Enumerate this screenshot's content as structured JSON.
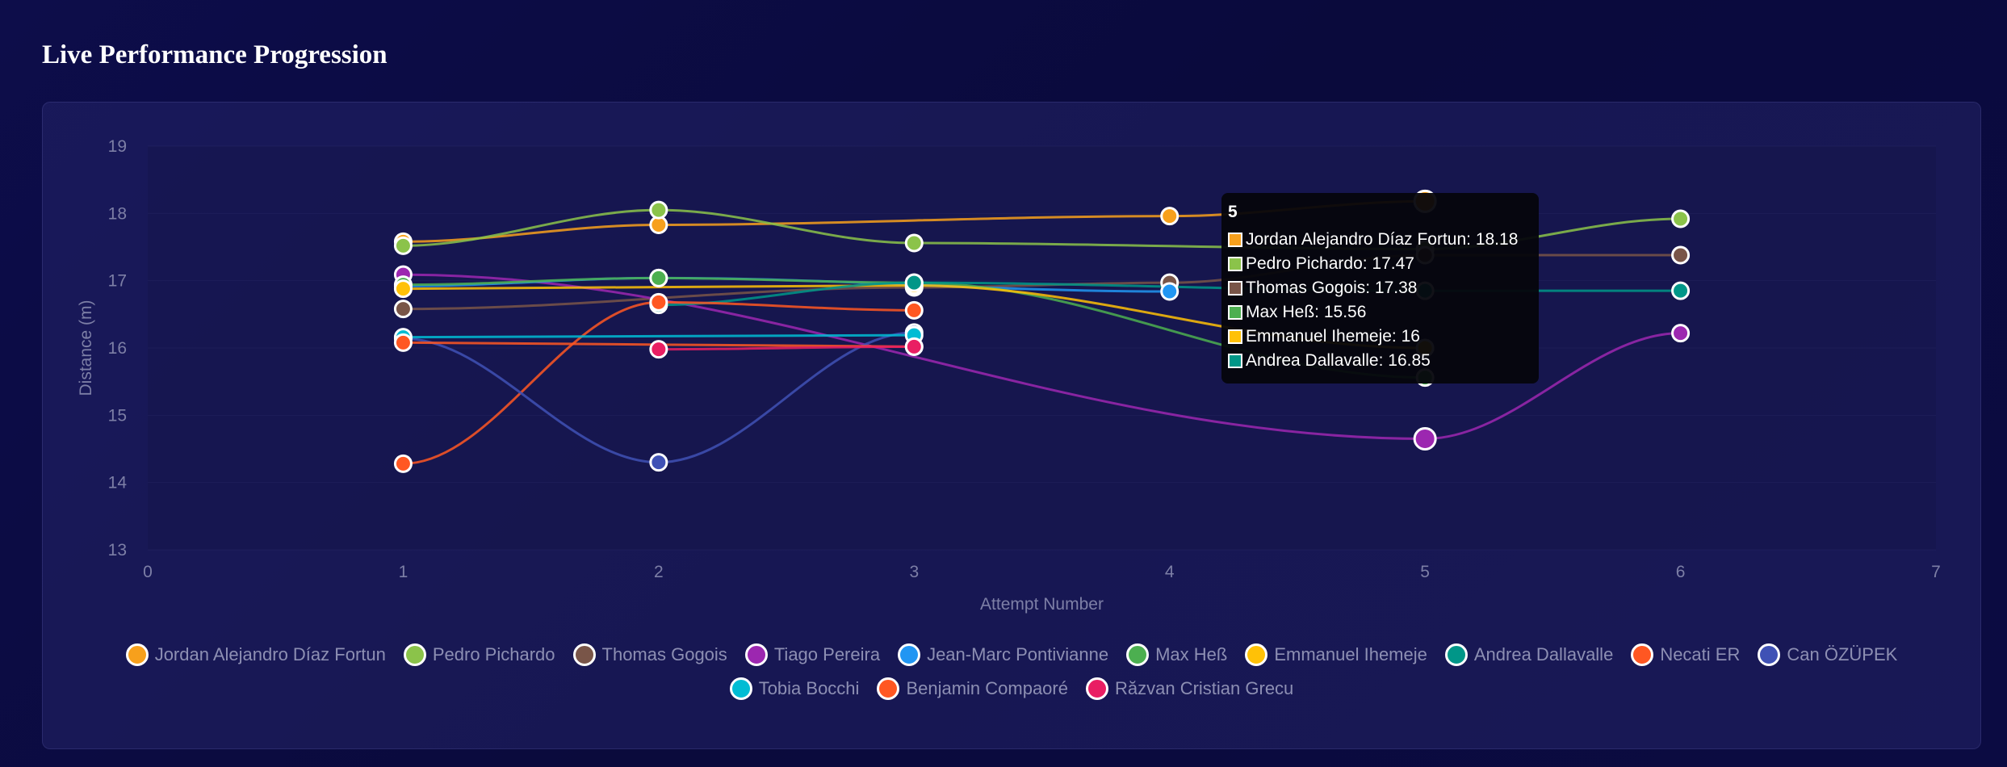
{
  "page": {
    "title": "Live Performance Progression"
  },
  "chart_data": {
    "type": "line",
    "title": "Live Performance Progression",
    "xlabel": "Attempt Number",
    "ylabel": "Distance (m)",
    "xlim": [
      0,
      7
    ],
    "ylim": [
      13,
      19
    ],
    "x_ticks": [
      "0",
      "1",
      "2",
      "3",
      "4",
      "5",
      "6",
      "7"
    ],
    "y_ticks": [
      "13",
      "14",
      "15",
      "16",
      "17",
      "18",
      "19"
    ],
    "series": [
      {
        "name": "Jordan Alejandro Díaz Fortun",
        "color": "#f7a01c",
        "points": [
          [
            1,
            17.58
          ],
          [
            2,
            17.83
          ],
          [
            4,
            17.96
          ],
          [
            5,
            18.18
          ]
        ]
      },
      {
        "name": "Pedro Pichardo",
        "color": "#8bc34a",
        "points": [
          [
            1,
            17.52
          ],
          [
            2,
            18.05
          ],
          [
            3,
            17.56
          ],
          [
            5,
            17.47
          ],
          [
            6,
            17.92
          ]
        ]
      },
      {
        "name": "Thomas Gogois",
        "color": "#795548",
        "points": [
          [
            1,
            16.58
          ],
          [
            3,
            16.9
          ],
          [
            4,
            16.97
          ],
          [
            5,
            17.38
          ],
          [
            6,
            17.38
          ]
        ]
      },
      {
        "name": "Tiago Pereira",
        "color": "#9c27b0",
        "points": [
          [
            1,
            17.09
          ],
          [
            5,
            14.65
          ],
          [
            6,
            16.22
          ]
        ]
      },
      {
        "name": "Jean-Marc Pontivianne",
        "color": "#2196f3",
        "points": [
          [
            1,
            16.92
          ],
          [
            2,
            17.04
          ],
          [
            4,
            16.84
          ]
        ]
      },
      {
        "name": "Max Heß",
        "color": "#4caf50",
        "points": [
          [
            1,
            16.94
          ],
          [
            2,
            17.04
          ],
          [
            3,
            16.97
          ],
          [
            5,
            15.56
          ]
        ]
      },
      {
        "name": "Emmanuel Ihemeje",
        "color": "#ffc107",
        "points": [
          [
            1,
            16.88
          ],
          [
            3,
            16.93
          ],
          [
            5,
            16.0
          ]
        ]
      },
      {
        "name": "Andrea Dallavalle",
        "color": "#009688",
        "points": [
          [
            2,
            16.64
          ],
          [
            3,
            16.97
          ],
          [
            5,
            16.85
          ],
          [
            6,
            16.85
          ]
        ]
      },
      {
        "name": "Necati ER",
        "color": "#ff5722",
        "points": [
          [
            1,
            14.28
          ],
          [
            2,
            16.68
          ],
          [
            3,
            16.56
          ]
        ]
      },
      {
        "name": "Can ÖZÜPEK",
        "color": "#3f51b5",
        "points": [
          [
            1,
            16.14
          ],
          [
            2,
            14.3
          ],
          [
            3,
            16.23
          ]
        ]
      },
      {
        "name": "Tobia Bocchi",
        "color": "#00bcd4",
        "points": [
          [
            1,
            16.16
          ],
          [
            3,
            16.19
          ]
        ]
      },
      {
        "name": "Benjamin Compaoré",
        "color": "#ff5722",
        "points": [
          [
            1,
            16.08
          ],
          [
            3,
            16.02
          ]
        ]
      },
      {
        "name": "Răzvan Cristian Grecu",
        "color": "#e91e63",
        "points": [
          [
            2,
            15.98
          ],
          [
            3,
            16.02
          ]
        ]
      }
    ],
    "tooltip": {
      "title": "5",
      "rows": [
        {
          "label": "Jordan Alejandro Díaz Fortun: 18.18",
          "color": "#f7a01c"
        },
        {
          "label": "Pedro Pichardo: 17.47",
          "color": "#8bc34a"
        },
        {
          "label": "Thomas Gogois: 17.38",
          "color": "#795548"
        },
        {
          "label": "Max Heß: 15.56",
          "color": "#4caf50"
        },
        {
          "label": "Emmanuel Ihemeje: 16",
          "color": "#ffc107"
        },
        {
          "label": "Andrea Dallavalle: 16.85",
          "color": "#009688"
        }
      ]
    },
    "legend_position": "bottom"
  }
}
